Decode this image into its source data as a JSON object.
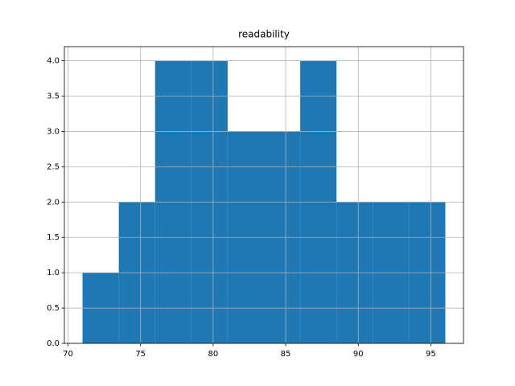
{
  "chart_data": {
    "type": "histogram",
    "title": "readability",
    "bins": [
      71,
      73.5,
      76,
      78.5,
      81,
      83.5,
      86,
      88.5,
      91,
      93.5,
      96
    ],
    "values": [
      1,
      2,
      4,
      4,
      3,
      3,
      4,
      2,
      2,
      2
    ],
    "color": "#1f77b4",
    "xlim": [
      69.75,
      97.25
    ],
    "xticks": [
      70,
      75,
      80,
      85,
      90,
      95
    ],
    "ylim": [
      0,
      4.2
    ],
    "yticks": [
      {
        "value": 0,
        "label": "0.0"
      },
      0.5,
      {
        "value": 1,
        "label": "1.0"
      },
      1.5,
      {
        "value": 2,
        "label": "2.0"
      },
      2.5,
      {
        "value": 3,
        "label": "3.0"
      },
      3.5,
      {
        "value": 4,
        "label": "4.0"
      }
    ],
    "grid": true
  }
}
